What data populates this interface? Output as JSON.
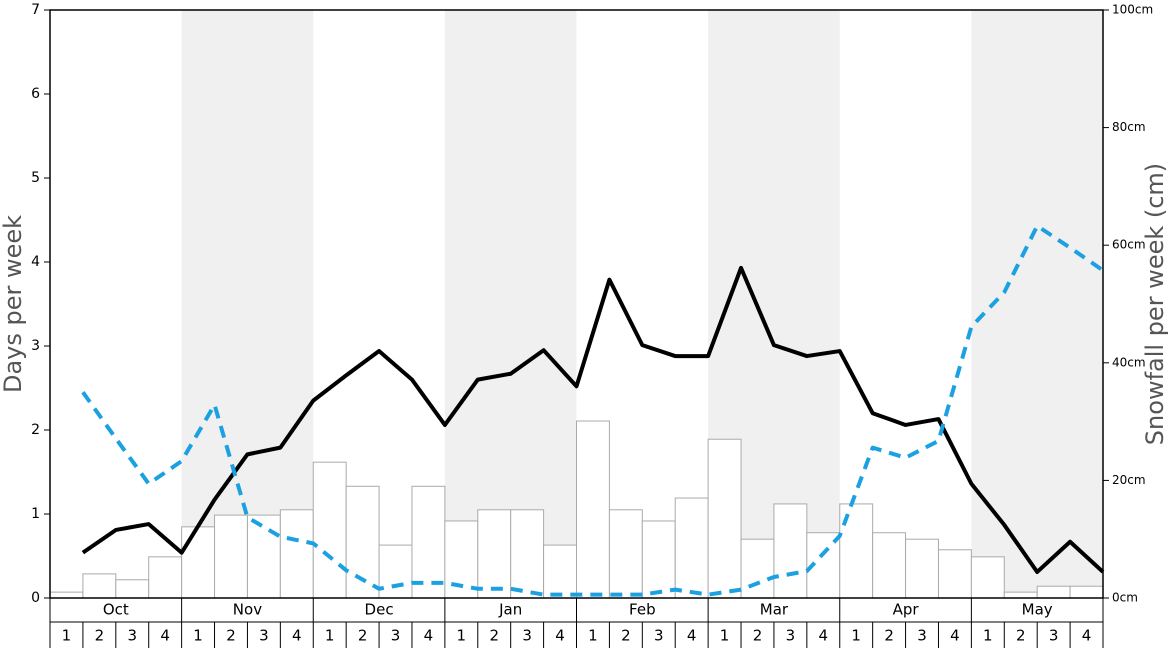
{
  "chart_data": {
    "type": "combo",
    "ylabel": "Days per week",
    "y2label": "Snowfall per week (cm)",
    "months": [
      "Oct",
      "Nov",
      "Dec",
      "Jan",
      "Feb",
      "Mar",
      "Apr",
      "May"
    ],
    "week_labels": [
      "1",
      "2",
      "3",
      "4"
    ],
    "ylim": [
      0,
      7
    ],
    "yticks": [
      0,
      1,
      2,
      3,
      4,
      5,
      6,
      7
    ],
    "y2lim": [
      0,
      100
    ],
    "y2ticks": [
      {
        "value": 0,
        "label": "0cm"
      },
      {
        "value": 20,
        "label": "20cm"
      },
      {
        "value": 40,
        "label": "40cm"
      },
      {
        "value": 60,
        "label": "60cm"
      },
      {
        "value": 80,
        "label": "80cm"
      },
      {
        "value": 100,
        "label": "100cm"
      }
    ],
    "series": [
      {
        "type": "bar",
        "axis": "y2",
        "color": "#ffffff",
        "values": [
          1.0,
          4.1,
          3.1,
          7.0,
          12.1,
          14.1,
          14.1,
          15.0,
          23.1,
          19.0,
          9.0,
          19.0,
          13.1,
          15.0,
          15.0,
          9.0,
          30.1,
          15.0,
          13.1,
          17.0,
          27.0,
          10.0,
          16.0,
          11.1,
          16.0,
          11.1,
          10.0,
          8.2,
          7.0,
          1.0,
          2.0,
          2.0
        ]
      },
      {
        "type": "line",
        "color": "#000000",
        "dashed": false,
        "values": [
          0.54,
          0.81,
          0.88,
          0.54,
          1.17,
          1.71,
          1.79,
          2.35,
          2.65,
          2.94,
          2.6,
          2.06,
          2.6,
          2.67,
          2.95,
          2.52,
          3.79,
          3.01,
          2.88,
          2.88,
          3.93,
          3.01,
          2.88,
          2.94,
          2.2,
          2.06,
          2.13,
          1.36,
          0.87,
          0.31,
          0.67,
          0.31
        ]
      },
      {
        "type": "line",
        "color": "#1ba1e2",
        "dashed": true,
        "values": [
          2.45,
          1.9,
          1.36,
          1.63,
          2.3,
          0.96,
          0.73,
          0.65,
          0.33,
          0.11,
          0.18,
          0.18,
          0.11,
          0.11,
          0.04,
          0.04,
          0.04,
          0.04,
          0.1,
          0.04,
          0.1,
          0.25,
          0.32,
          0.74,
          1.79,
          1.67,
          1.87,
          3.23,
          3.64,
          4.43,
          4.17,
          3.9
        ]
      }
    ]
  }
}
